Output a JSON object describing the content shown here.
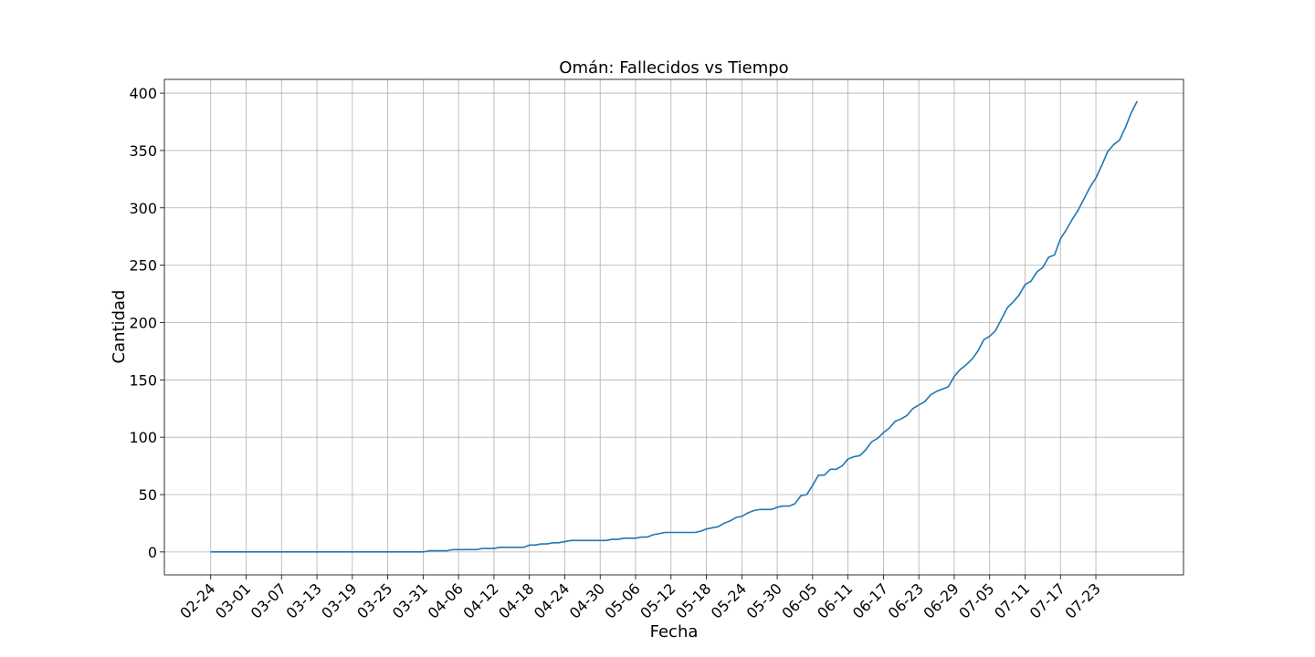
{
  "chart_data": {
    "type": "line",
    "title": "Omán: Fallecidos vs Tiempo",
    "xlabel": "Fecha",
    "ylabel": "Cantidad",
    "x_start": "02-24",
    "x_tick_labels": [
      "02-24",
      "03-01",
      "03-07",
      "03-13",
      "03-19",
      "03-25",
      "03-31",
      "04-06",
      "04-12",
      "04-18",
      "04-24",
      "04-30",
      "05-06",
      "05-12",
      "05-18",
      "05-24",
      "05-30",
      "06-05",
      "06-11",
      "06-17",
      "06-23",
      "06-29",
      "07-05",
      "07-11",
      "07-17",
      "07-23"
    ],
    "y_ticks": [
      0,
      50,
      100,
      150,
      200,
      250,
      300,
      350,
      400
    ],
    "ylim": [
      -20,
      412
    ],
    "grid": true,
    "line_color": "#1f77b4",
    "series": [
      {
        "points": [
          [
            "02-24",
            0
          ],
          [
            "03-31",
            0
          ],
          [
            "04-01",
            1
          ],
          [
            "04-04",
            1
          ],
          [
            "04-05",
            2
          ],
          [
            "04-09",
            2
          ],
          [
            "04-10",
            3
          ],
          [
            "04-12",
            3
          ],
          [
            "04-13",
            4
          ],
          [
            "04-17",
            4
          ],
          [
            "04-18",
            6
          ],
          [
            "04-19",
            6
          ],
          [
            "04-20",
            7
          ],
          [
            "04-21",
            7
          ],
          [
            "04-22",
            8
          ],
          [
            "04-23",
            8
          ],
          [
            "04-24",
            9
          ],
          [
            "04-25",
            10
          ],
          [
            "05-01",
            10
          ],
          [
            "05-02",
            11
          ],
          [
            "05-03",
            11
          ],
          [
            "05-04",
            12
          ],
          [
            "05-06",
            12
          ],
          [
            "05-07",
            13
          ],
          [
            "05-08",
            13
          ],
          [
            "05-09",
            15
          ],
          [
            "05-10",
            16
          ],
          [
            "05-11",
            17
          ],
          [
            "05-16",
            17
          ],
          [
            "05-17",
            18
          ],
          [
            "05-18",
            20
          ],
          [
            "05-19",
            21
          ],
          [
            "05-20",
            22
          ],
          [
            "05-21",
            25
          ],
          [
            "05-22",
            27
          ],
          [
            "05-23",
            30
          ],
          [
            "05-24",
            31
          ],
          [
            "05-25",
            34
          ],
          [
            "05-26",
            36
          ],
          [
            "05-27",
            37
          ],
          [
            "05-29",
            37
          ],
          [
            "05-30",
            39
          ],
          [
            "05-31",
            40
          ],
          [
            "06-01",
            40
          ],
          [
            "06-02",
            42
          ],
          [
            "06-03",
            49
          ],
          [
            "06-04",
            50
          ],
          [
            "06-05",
            58
          ],
          [
            "06-06",
            67
          ],
          [
            "06-07",
            67
          ],
          [
            "06-08",
            72
          ],
          [
            "06-09",
            72
          ],
          [
            "06-10",
            75
          ],
          [
            "06-11",
            81
          ],
          [
            "06-12",
            83
          ],
          [
            "06-13",
            84
          ],
          [
            "06-14",
            89
          ],
          [
            "06-15",
            96
          ],
          [
            "06-16",
            99
          ],
          [
            "06-17",
            104
          ],
          [
            "06-18",
            108
          ],
          [
            "06-19",
            114
          ],
          [
            "06-20",
            116
          ],
          [
            "06-21",
            119
          ],
          [
            "06-22",
            125
          ],
          [
            "06-23",
            128
          ],
          [
            "06-24",
            131
          ],
          [
            "06-25",
            137
          ],
          [
            "06-26",
            140
          ],
          [
            "06-27",
            142
          ],
          [
            "06-28",
            144
          ],
          [
            "06-29",
            153
          ],
          [
            "06-30",
            159
          ],
          [
            "07-01",
            163
          ],
          [
            "07-02",
            168
          ],
          [
            "07-03",
            175
          ],
          [
            "07-04",
            185
          ],
          [
            "07-05",
            188
          ],
          [
            "07-06",
            193
          ],
          [
            "07-07",
            203
          ],
          [
            "07-08",
            213
          ],
          [
            "07-09",
            218
          ],
          [
            "07-10",
            224
          ],
          [
            "07-11",
            233
          ],
          [
            "07-12",
            236
          ],
          [
            "07-13",
            244
          ],
          [
            "07-14",
            248
          ],
          [
            "07-15",
            257
          ],
          [
            "07-16",
            259
          ],
          [
            "07-17",
            273
          ],
          [
            "07-18",
            281
          ],
          [
            "07-19",
            290
          ],
          [
            "07-20",
            298
          ],
          [
            "07-21",
            308
          ],
          [
            "07-22",
            318
          ],
          [
            "07-23",
            326
          ],
          [
            "07-24",
            337
          ],
          [
            "07-25",
            349
          ],
          [
            "07-26",
            355
          ],
          [
            "07-27",
            359
          ],
          [
            "07-28",
            370
          ],
          [
            "07-29",
            383
          ],
          [
            "07-30",
            393
          ]
        ]
      }
    ]
  }
}
